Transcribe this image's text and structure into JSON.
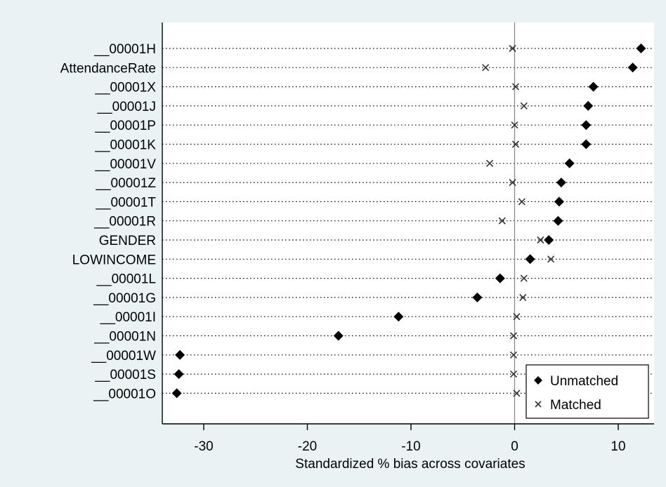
{
  "chart_data": {
    "type": "scatter",
    "xlabel": "Standardized % bias across covariates",
    "ylabel": "",
    "xlim": [
      -34,
      13.5
    ],
    "xticks": [
      -30,
      -20,
      -10,
      0,
      10
    ],
    "grid": "dotted horizontal lines per covariate",
    "reference_line_x": 0,
    "legend_position": "bottom-right",
    "categories": [
      "__00001H",
      "AttendanceRate",
      "__00001X",
      "__00001J",
      "__00001P",
      "__00001K",
      "__00001V",
      "__00001Z",
      "__00001T",
      "__00001R",
      "GENDER",
      "LOWINCOME",
      "__00001L",
      "__00001G",
      "__00001I",
      "__00001N",
      "__00001W",
      "__00001S",
      "__00001O"
    ],
    "series": [
      {
        "name": "Unmatched",
        "marker": "diamond",
        "color": "#000000",
        "values": [
          12.2,
          11.4,
          7.6,
          7.1,
          6.9,
          6.9,
          5.3,
          4.5,
          4.3,
          4.2,
          3.3,
          1.5,
          -1.4,
          -3.6,
          -11.2,
          -17.0,
          -32.3,
          -32.4,
          -32.6
        ]
      },
      {
        "name": "Matched",
        "marker": "x",
        "color": "#000000",
        "values": [
          -0.2,
          -2.8,
          0.1,
          0.9,
          0.0,
          0.1,
          -2.4,
          -0.2,
          0.7,
          -1.2,
          2.5,
          3.5,
          0.9,
          0.8,
          0.2,
          -0.1,
          -0.1,
          -0.1,
          0.2
        ]
      }
    ]
  }
}
